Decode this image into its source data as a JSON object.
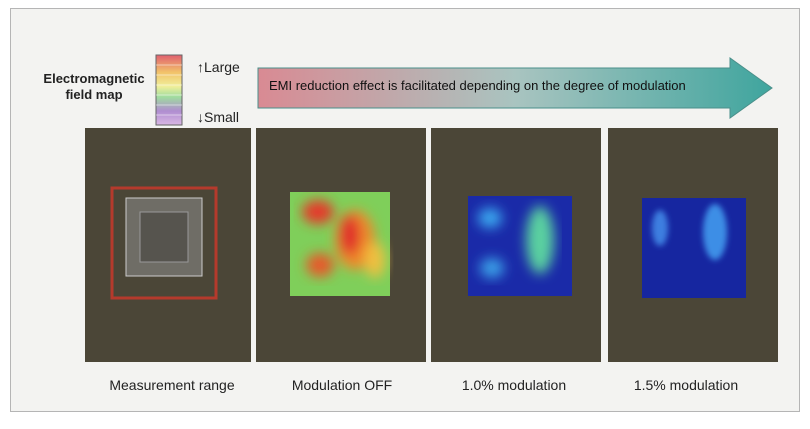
{
  "legend": {
    "label_lines": [
      "Electromagnetic",
      "field map"
    ],
    "large": "Large",
    "small": "Small"
  },
  "arrow": {
    "text": "EMI reduction effect is facilitated depending on the degree of modulation"
  },
  "panels": [
    {
      "caption": "Measurement range"
    },
    {
      "caption": "Modulation OFF"
    },
    {
      "caption": "1.0% modulation"
    },
    {
      "caption": "1.5% modulation"
    }
  ]
}
